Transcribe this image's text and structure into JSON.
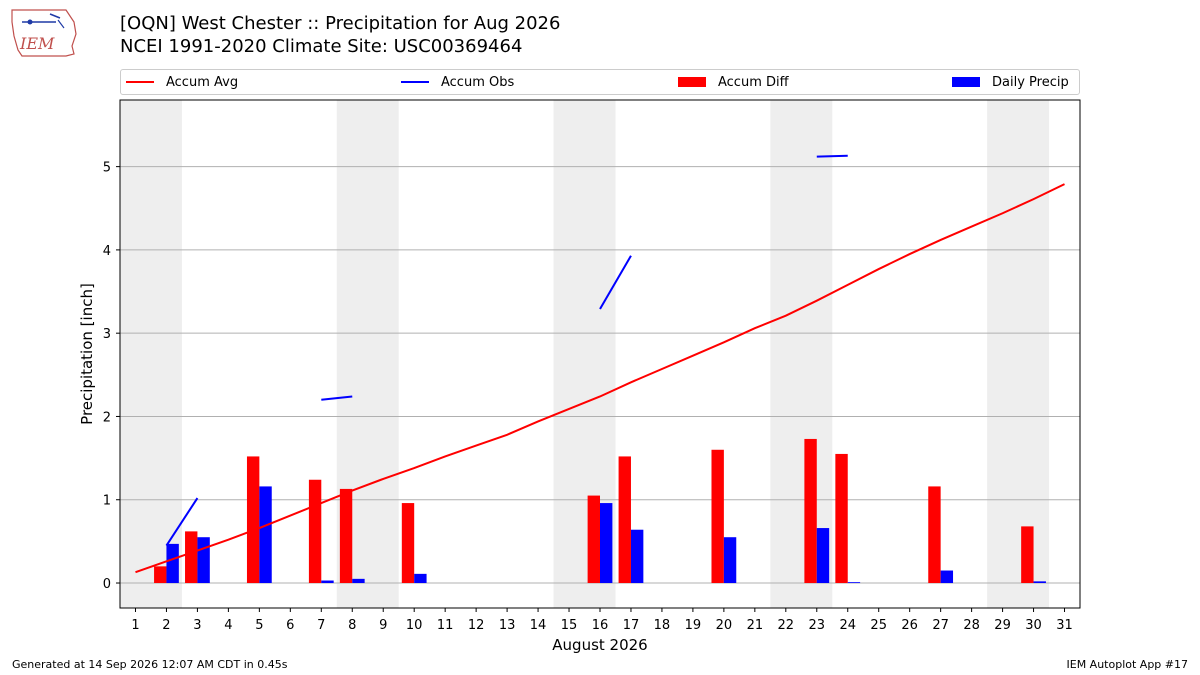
{
  "header": {
    "title_line1": "[OQN] West Chester :: Precipitation for Aug 2026",
    "title_line2": "NCEI 1991-2020 Climate Site: USC00369464",
    "logo_text": "IEM"
  },
  "footer": {
    "left": "Generated at 14 Sep 2026 12:07 AM CDT in 0.45s",
    "right": "IEM Autoplot App #17"
  },
  "colors": {
    "accum_avg": "#ff0000",
    "accum_obs": "#0000ff",
    "accum_diff": "#ff0000",
    "daily_precip": "#0000ff",
    "weekend_shade": "#eeeeee",
    "grid": "#b0b0b0"
  },
  "chart_data": {
    "type": "bar",
    "xlabel": "August 2026",
    "ylabel": "Precipitation [inch]",
    "xlim": [
      0.5,
      31.5
    ],
    "ylim": [
      -0.3,
      5.8
    ],
    "yticks": [
      0,
      1,
      2,
      3,
      4,
      5
    ],
    "x": [
      1,
      2,
      3,
      4,
      5,
      6,
      7,
      8,
      9,
      10,
      11,
      12,
      13,
      14,
      15,
      16,
      17,
      18,
      19,
      20,
      21,
      22,
      23,
      24,
      25,
      26,
      27,
      28,
      29,
      30,
      31
    ],
    "weekend_spans": [
      [
        0.5,
        2.5
      ],
      [
        7.5,
        9.5
      ],
      [
        14.5,
        16.5
      ],
      [
        21.5,
        23.5
      ],
      [
        28.5,
        30.5
      ]
    ],
    "grid": "y",
    "legend_position": "top",
    "legend": [
      "Accum Avg",
      "Accum Obs",
      "Accum Diff",
      "Daily Precip"
    ],
    "series": [
      {
        "name": "Accum Avg",
        "kind": "line",
        "values": [
          0.13,
          0.26,
          0.39,
          0.52,
          0.66,
          0.81,
          0.96,
          1.11,
          1.25,
          1.38,
          1.52,
          1.65,
          1.78,
          1.94,
          2.09,
          2.24,
          2.41,
          2.57,
          2.73,
          2.89,
          3.06,
          3.21,
          3.39,
          3.58,
          3.77,
          3.95,
          4.12,
          4.28,
          4.44,
          4.61,
          4.79
        ]
      },
      {
        "name": "Accum Obs",
        "kind": "segments",
        "segments": [
          {
            "x": [
              2,
              3
            ],
            "y": [
              0.45,
              1.02
            ]
          },
          {
            "x": [
              7,
              8
            ],
            "y": [
              2.2,
              2.24
            ]
          },
          {
            "x": [
              16,
              17
            ],
            "y": [
              3.29,
              3.93
            ]
          },
          {
            "x": [
              23,
              24
            ],
            "y": [
              5.12,
              5.13
            ]
          }
        ]
      },
      {
        "name": "Accum Diff",
        "kind": "bar",
        "values": [
          0,
          0.2,
          0.62,
          0,
          1.52,
          0,
          1.24,
          1.13,
          0,
          0.96,
          0,
          0,
          0,
          0,
          0,
          1.05,
          1.52,
          0,
          0,
          1.6,
          0,
          0,
          1.73,
          1.55,
          0,
          0,
          1.16,
          0,
          0,
          0.68,
          0
        ]
      },
      {
        "name": "Daily Precip",
        "kind": "bar",
        "values": [
          0,
          0.47,
          0.55,
          0,
          1.16,
          0,
          0.03,
          0.05,
          0,
          0.11,
          0,
          0,
          0,
          0,
          0,
          0.96,
          0.64,
          0,
          0,
          0.55,
          0,
          0,
          0.66,
          0.01,
          0,
          0,
          0.15,
          0,
          0,
          0.02,
          0
        ]
      }
    ]
  }
}
